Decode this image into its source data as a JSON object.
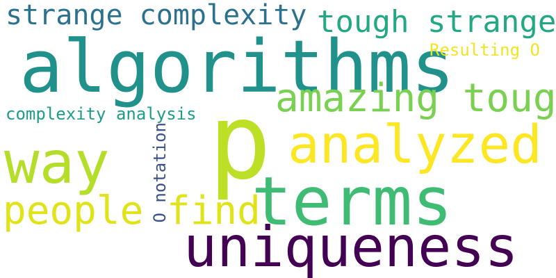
{
  "words": [
    {
      "text": "strange complexity",
      "color": "#2c728e"
    },
    {
      "text": "tough strange",
      "color": "#22a884"
    },
    {
      "text": "algorithms",
      "color": "#21918c"
    },
    {
      "text": "Resulting O",
      "color": "#f0e424"
    },
    {
      "text": "amazing tough",
      "color": "#7ad151"
    },
    {
      "text": "complexity analysis",
      "color": "#1e9b8a"
    },
    {
      "text": "p",
      "color": "#bddf26"
    },
    {
      "text": "analyzed",
      "color": "#fde725"
    },
    {
      "text": "way",
      "color": "#b5de2b"
    },
    {
      "text": "O notation",
      "color": "#3b528b"
    },
    {
      "text": "people find",
      "color": "#dfe318"
    },
    {
      "text": "terms",
      "color": "#3fbc73"
    },
    {
      "text": "uniqueness",
      "color": "#440154"
    }
  ]
}
